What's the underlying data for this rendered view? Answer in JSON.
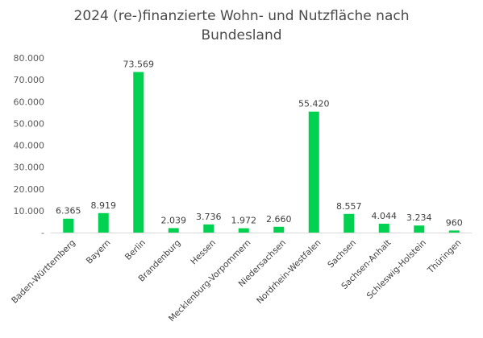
{
  "chart_data": {
    "type": "bar",
    "title_line1": "2024 (re-)finanzierte Wohn- und Nutzfläche nach",
    "title_line2": "Bundesland",
    "categories": [
      "Baden-Württemberg",
      "Bayern",
      "Berlin",
      "Brandenburg",
      "Hessen",
      "Mecklenburg-Vorpommern",
      "Niedersachsen",
      "Nordrhein-Westfalen",
      "Sachsen",
      "Sachsen-Anhalt",
      "Schleswig-Holstein",
      "Thüringen"
    ],
    "values": [
      6365,
      8919,
      73569,
      2039,
      3736,
      1972,
      2660,
      55420,
      8557,
      4044,
      3234,
      960
    ],
    "data_labels": [
      "6.365",
      "8.919",
      "73.569",
      "2.039",
      "3.736",
      "1.972",
      "2.660",
      "55.420",
      "8.557",
      "4.044",
      "3.234",
      "960"
    ],
    "yticks": [
      0,
      10000,
      20000,
      30000,
      40000,
      50000,
      60000,
      70000,
      80000
    ],
    "ytick_labels": [
      "-",
      "10.000",
      "20.000",
      "30.000",
      "40.000",
      "50.000",
      "60.000",
      "70.000",
      "80.000"
    ],
    "ylim": [
      0,
      80000
    ],
    "grid": false,
    "legend": "none",
    "bar_color": "#00D150"
  }
}
